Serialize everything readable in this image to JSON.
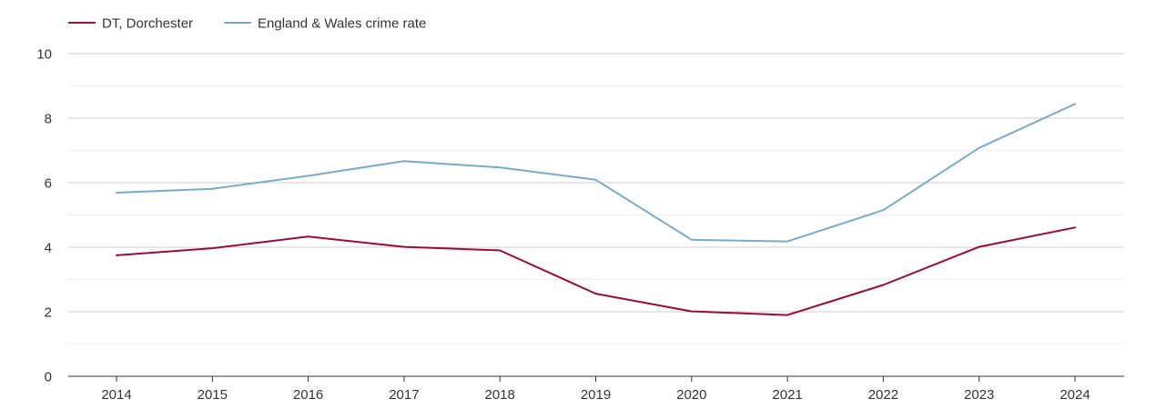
{
  "chart_data": {
    "type": "line",
    "title": "",
    "xlabel": "",
    "ylabel": "",
    "x": [
      "2014",
      "2015",
      "2016",
      "2017",
      "2018",
      "2019",
      "2020",
      "2021",
      "2022",
      "2023",
      "2024"
    ],
    "ylim": [
      0,
      10
    ],
    "yticks": [
      "0",
      "2",
      "4",
      "6",
      "8",
      "10"
    ],
    "grid": true,
    "legend_position": "top-left",
    "series": [
      {
        "name": "DT, Dorchester",
        "color": "#9b0b36",
        "values": [
          3.75,
          3.97,
          4.33,
          4.01,
          3.9,
          2.56,
          2.01,
          1.9,
          2.83,
          4.01,
          4.61
        ]
      },
      {
        "name": "England & Wales crime rate",
        "color": "#76abc9",
        "values": [
          5.69,
          5.81,
          6.21,
          6.67,
          6.47,
          6.09,
          4.23,
          4.18,
          5.15,
          7.08,
          8.44
        ]
      }
    ]
  }
}
